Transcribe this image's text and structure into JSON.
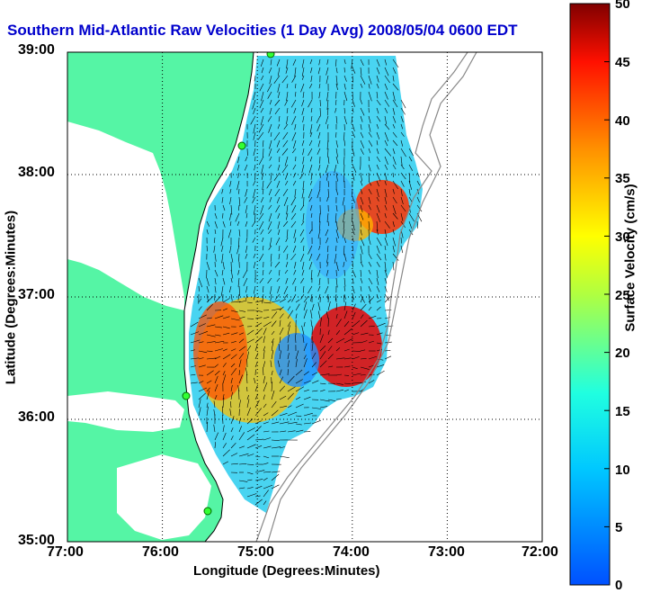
{
  "title": "Southern Mid-Atlantic Raw Velocities (1 Day Avg) 2008/05/04 0600 EDT",
  "x_axis": {
    "label": "Longitude (Degrees:Minutes)",
    "ticks": [
      "77:00",
      "76:00",
      "75:00",
      "74:00",
      "73:00",
      "72:00"
    ]
  },
  "y_axis": {
    "label": "Latitude (Degrees:Minutes)",
    "ticks": [
      "39:00",
      "38:00",
      "37:00",
      "36:00",
      "35:00"
    ]
  },
  "colorbar": {
    "label": "Surface Velocity (cm/s)",
    "ticks": [
      "50",
      "45",
      "40",
      "35",
      "30",
      "25",
      "20",
      "15",
      "10",
      "5",
      "0"
    ],
    "min": 0,
    "max": 50,
    "colormap": "jet"
  },
  "map": {
    "lon_range": [
      -77,
      -72
    ],
    "lat_range": [
      35,
      39
    ],
    "land_color": "#55f5a5",
    "grid": "dotted",
    "vector_color": "#000000",
    "station_color": "#33ff33"
  }
}
